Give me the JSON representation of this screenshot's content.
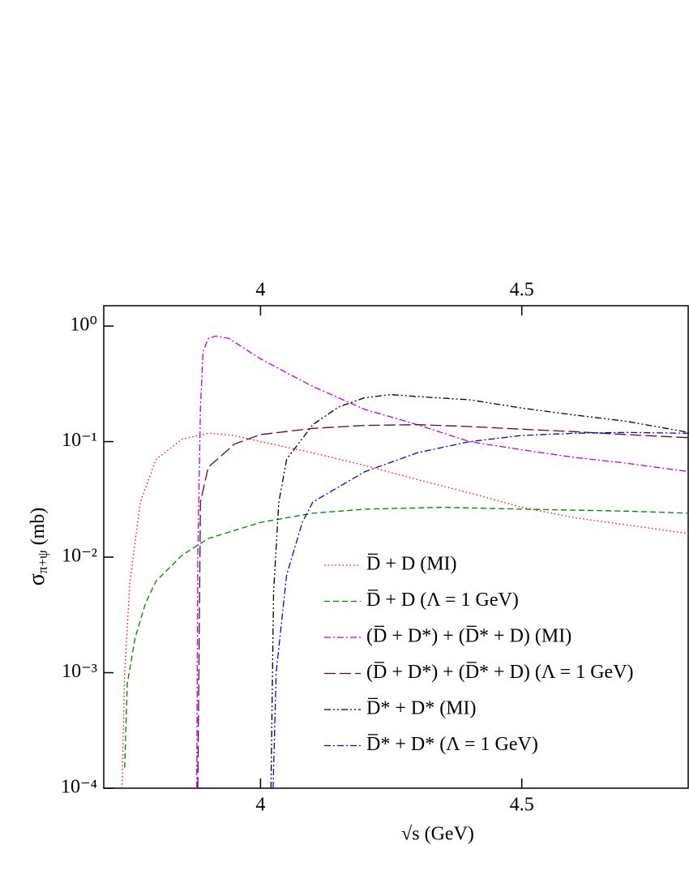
{
  "chart_data": {
    "type": "line",
    "x_label": "√s  (GeV)",
    "y_label": {
      "symbol": "σ",
      "subscript": "π+ψ",
      "unit": "(mb)"
    },
    "xlim": [
      3.7,
      4.82
    ],
    "xticks": [
      4,
      4.5
    ],
    "ylim": [
      0.0001,
      1.5
    ],
    "log_y": true,
    "yticks": [
      {
        "value": 0.0001,
        "label": "10⁻⁴"
      },
      {
        "value": 0.001,
        "label": "10⁻³"
      },
      {
        "value": 0.01,
        "label": "10⁻²"
      },
      {
        "value": 0.1,
        "label": "10⁻¹"
      },
      {
        "value": 1,
        "label": "10⁰"
      }
    ],
    "top_axis": true,
    "legend": "lower right",
    "series": [
      {
        "name": "D̅ + D (MI)",
        "color": "#ff0000",
        "dash": "dotted",
        "x": [
          3.735,
          3.74,
          3.75,
          3.77,
          3.8,
          3.85,
          3.9,
          3.95,
          4.0,
          4.1,
          4.2,
          4.3,
          4.4,
          4.5,
          4.6,
          4.7,
          4.82
        ],
        "values": [
          0.0001,
          0.001,
          0.006,
          0.03,
          0.07,
          0.105,
          0.118,
          0.113,
          0.1,
          0.08,
          0.062,
          0.047,
          0.036,
          0.027,
          0.022,
          0.019,
          0.016
        ]
      },
      {
        "name": "D̅ + D (Λ = 1 GeV)",
        "color": "#008000",
        "dash": "dashed",
        "x": [
          3.74,
          3.745,
          3.76,
          3.78,
          3.8,
          3.85,
          3.9,
          4.0,
          4.1,
          4.2,
          4.35,
          4.5,
          4.7,
          4.82
        ],
        "values": [
          0.00015,
          0.0008,
          0.002,
          0.004,
          0.0062,
          0.0104,
          0.0145,
          0.02,
          0.024,
          0.026,
          0.027,
          0.026,
          0.025,
          0.024
        ]
      },
      {
        "name": "(D̅ + D*) + (D̅* + D)  (MI)",
        "color": "#c000d0",
        "dash": "dashdot",
        "x": [
          3.878,
          3.88,
          3.885,
          3.89,
          3.9,
          3.915,
          3.94,
          4.0,
          4.1,
          4.2,
          4.3,
          4.4,
          4.5,
          4.6,
          4.7,
          4.82
        ],
        "values": [
          0.0001,
          0.01,
          0.2,
          0.6,
          0.78,
          0.82,
          0.78,
          0.52,
          0.3,
          0.19,
          0.14,
          0.1,
          0.085,
          0.073,
          0.065,
          0.055
        ]
      },
      {
        "name": "(D̅ + D*) + (D̅* + D) (Λ = 1 GeV)",
        "color": "#600040",
        "dash": "longdash",
        "x": [
          3.88,
          3.885,
          3.9,
          3.95,
          4.0,
          4.1,
          4.2,
          4.3,
          4.4,
          4.5,
          4.6,
          4.7,
          4.82
        ],
        "values": [
          0.0001,
          0.03,
          0.06,
          0.095,
          0.115,
          0.13,
          0.138,
          0.14,
          0.135,
          0.128,
          0.122,
          0.115,
          0.108
        ]
      },
      {
        "name": "D̅* + D* (MI)",
        "color": "#000000",
        "dash": "dashdotdot",
        "x": [
          4.02,
          4.025,
          4.035,
          4.05,
          4.1,
          4.15,
          4.2,
          4.25,
          4.3,
          4.4,
          4.5,
          4.6,
          4.7,
          4.82
        ],
        "values": [
          0.0001,
          0.005,
          0.03,
          0.07,
          0.14,
          0.2,
          0.24,
          0.255,
          0.245,
          0.23,
          0.195,
          0.17,
          0.15,
          0.12
        ]
      },
      {
        "name": "D̅* + D* (Λ = 1 GeV)",
        "color": "#0000ff",
        "dash": "dashdot",
        "x": [
          4.024,
          4.03,
          4.05,
          4.08,
          4.1,
          4.2,
          4.3,
          4.4,
          4.5,
          4.6,
          4.7,
          4.82
        ],
        "values": [
          0.0001,
          0.001,
          0.007,
          0.02,
          0.03,
          0.055,
          0.08,
          0.1,
          0.113,
          0.118,
          0.12,
          0.118
        ]
      }
    ]
  }
}
